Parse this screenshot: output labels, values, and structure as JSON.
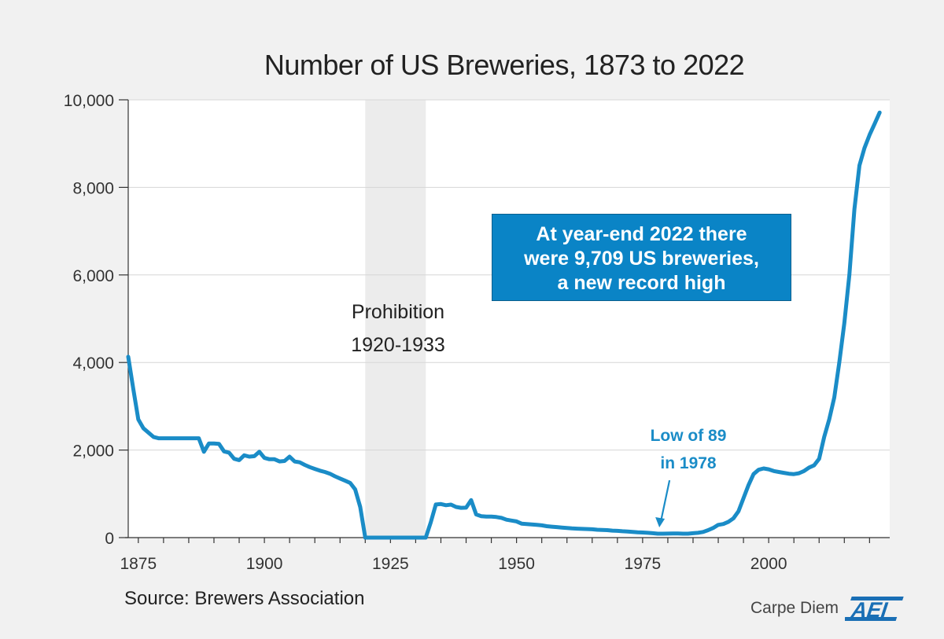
{
  "chart_data": {
    "type": "line",
    "title": "Number of US Breweries, 1873 to 2022",
    "xlabel": "",
    "ylabel": "",
    "xlim": [
      1873,
      2024
    ],
    "ylim": [
      0,
      10000
    ],
    "x_ticks": [
      1875,
      1900,
      1925,
      1950,
      1975,
      2000
    ],
    "x_tick_labels": [
      "1875",
      "1900",
      "1925",
      "1950",
      "1975",
      "2000"
    ],
    "y_ticks": [
      0,
      2000,
      4000,
      6000,
      8000,
      10000
    ],
    "y_tick_labels": [
      "0",
      "2,000",
      "4,000",
      "6,000",
      "8,000",
      "10,000"
    ],
    "grid": true,
    "shaded_region": {
      "x_start": 1920,
      "x_end": 1932,
      "label_line1": "Prohibition",
      "label_line2": "1920-1933"
    },
    "series": [
      {
        "name": "US Breweries",
        "color": "#1a8cc7",
        "points": [
          [
            1873,
            4131
          ],
          [
            1874,
            3400
          ],
          [
            1875,
            2700
          ],
          [
            1876,
            2500
          ],
          [
            1877,
            2400
          ],
          [
            1878,
            2300
          ],
          [
            1879,
            2270
          ],
          [
            1880,
            2270
          ],
          [
            1881,
            2270
          ],
          [
            1882,
            2270
          ],
          [
            1883,
            2270
          ],
          [
            1884,
            2270
          ],
          [
            1885,
            2270
          ],
          [
            1886,
            2270
          ],
          [
            1887,
            2270
          ],
          [
            1888,
            1960
          ],
          [
            1889,
            2150
          ],
          [
            1890,
            2150
          ],
          [
            1891,
            2140
          ],
          [
            1892,
            1970
          ],
          [
            1893,
            1940
          ],
          [
            1894,
            1800
          ],
          [
            1895,
            1770
          ],
          [
            1896,
            1880
          ],
          [
            1897,
            1850
          ],
          [
            1898,
            1860
          ],
          [
            1899,
            1960
          ],
          [
            1900,
            1820
          ],
          [
            1901,
            1790
          ],
          [
            1902,
            1790
          ],
          [
            1903,
            1740
          ],
          [
            1904,
            1750
          ],
          [
            1905,
            1850
          ],
          [
            1906,
            1740
          ],
          [
            1907,
            1720
          ],
          [
            1908,
            1660
          ],
          [
            1909,
            1610
          ],
          [
            1910,
            1570
          ],
          [
            1911,
            1530
          ],
          [
            1912,
            1500
          ],
          [
            1913,
            1460
          ],
          [
            1914,
            1400
          ],
          [
            1915,
            1350
          ],
          [
            1916,
            1300
          ],
          [
            1917,
            1250
          ],
          [
            1918,
            1100
          ],
          [
            1919,
            700
          ],
          [
            1920,
            0
          ],
          [
            1921,
            0
          ],
          [
            1922,
            0
          ],
          [
            1923,
            0
          ],
          [
            1924,
            0
          ],
          [
            1925,
            0
          ],
          [
            1926,
            0
          ],
          [
            1927,
            0
          ],
          [
            1928,
            0
          ],
          [
            1929,
            0
          ],
          [
            1930,
            0
          ],
          [
            1931,
            0
          ],
          [
            1932,
            0
          ],
          [
            1933,
            350
          ],
          [
            1934,
            756
          ],
          [
            1935,
            766
          ],
          [
            1936,
            739
          ],
          [
            1937,
            754
          ],
          [
            1938,
            700
          ],
          [
            1939,
            680
          ],
          [
            1940,
            684
          ],
          [
            1941,
            857
          ],
          [
            1942,
            530
          ],
          [
            1943,
            491
          ],
          [
            1944,
            480
          ],
          [
            1945,
            480
          ],
          [
            1946,
            470
          ],
          [
            1947,
            450
          ],
          [
            1948,
            410
          ],
          [
            1949,
            390
          ],
          [
            1950,
            370
          ],
          [
            1951,
            320
          ],
          [
            1952,
            310
          ],
          [
            1953,
            300
          ],
          [
            1954,
            290
          ],
          [
            1955,
            280
          ],
          [
            1956,
            260
          ],
          [
            1957,
            250
          ],
          [
            1958,
            240
          ],
          [
            1959,
            230
          ],
          [
            1960,
            220
          ],
          [
            1961,
            210
          ],
          [
            1962,
            205
          ],
          [
            1963,
            200
          ],
          [
            1964,
            195
          ],
          [
            1965,
            190
          ],
          [
            1966,
            180
          ],
          [
            1967,
            175
          ],
          [
            1968,
            170
          ],
          [
            1969,
            160
          ],
          [
            1970,
            154
          ],
          [
            1971,
            145
          ],
          [
            1972,
            140
          ],
          [
            1973,
            130
          ],
          [
            1974,
            120
          ],
          [
            1975,
            117
          ],
          [
            1976,
            110
          ],
          [
            1977,
            100
          ],
          [
            1978,
            89
          ],
          [
            1979,
            90
          ],
          [
            1980,
            92
          ],
          [
            1981,
            95
          ],
          [
            1982,
            95
          ],
          [
            1983,
            90
          ],
          [
            1984,
            90
          ],
          [
            1985,
            100
          ],
          [
            1986,
            110
          ],
          [
            1987,
            130
          ],
          [
            1988,
            170
          ],
          [
            1989,
            220
          ],
          [
            1990,
            290
          ],
          [
            1991,
            310
          ],
          [
            1992,
            360
          ],
          [
            1993,
            440
          ],
          [
            1994,
            600
          ],
          [
            1995,
            900
          ],
          [
            1996,
            1200
          ],
          [
            1997,
            1450
          ],
          [
            1998,
            1550
          ],
          [
            1999,
            1580
          ],
          [
            2000,
            1560
          ],
          [
            2001,
            1520
          ],
          [
            2002,
            1500
          ],
          [
            2003,
            1480
          ],
          [
            2004,
            1460
          ],
          [
            2005,
            1450
          ],
          [
            2006,
            1470
          ],
          [
            2007,
            1520
          ],
          [
            2008,
            1600
          ],
          [
            2009,
            1650
          ],
          [
            2010,
            1800
          ],
          [
            2011,
            2300
          ],
          [
            2012,
            2700
          ],
          [
            2013,
            3200
          ],
          [
            2014,
            4000
          ],
          [
            2015,
            4900
          ],
          [
            2016,
            6000
          ],
          [
            2017,
            7500
          ],
          [
            2018,
            8500
          ],
          [
            2019,
            8900
          ],
          [
            2020,
            9200
          ],
          [
            2021,
            9450
          ],
          [
            2022,
            9709
          ]
        ]
      }
    ],
    "annotations": [
      {
        "id": "callout",
        "lines": [
          "At year-end 2022 there",
          "were 9,709 US breweries,",
          "a new record high"
        ]
      },
      {
        "id": "low",
        "lines": [
          "Low of 89",
          "in 1978"
        ],
        "x": 1978,
        "y": 89
      }
    ]
  },
  "source": "Source: Brewers Association",
  "footer": {
    "brand": "Carpe Diem",
    "logo": "AEI"
  },
  "colors": {
    "line": "#1a8cc7",
    "callout_bg": "#0a84c6",
    "shade": "#ececec",
    "plot_bg": "#ffffff",
    "page_bg": "#f1f1f1"
  }
}
